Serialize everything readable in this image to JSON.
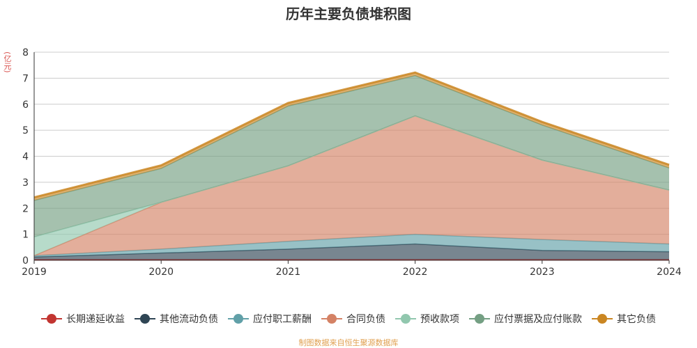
{
  "chart_data": {
    "type": "area",
    "stacked": true,
    "title": "历年主要负债堆积图",
    "unit_label": "(亿元)",
    "x": [
      "2019",
      "2020",
      "2021",
      "2022",
      "2023",
      "2024"
    ],
    "ylim": [
      0,
      8
    ],
    "yticks": [
      "0",
      "1",
      "2",
      "3",
      "4",
      "5",
      "6",
      "7",
      "8"
    ],
    "grid": true,
    "legend_position": "bottom",
    "series": [
      {
        "name": "长期递延收益",
        "color": "#c23531",
        "values": [
          0.03,
          0.03,
          0.03,
          0.03,
          0.03,
          0.03
        ]
      },
      {
        "name": "其他流动负债",
        "color": "#2f4554",
        "values": [
          0.1,
          0.25,
          0.4,
          0.6,
          0.35,
          0.3
        ]
      },
      {
        "name": "应付职工薪酬",
        "color": "#61a0a8",
        "values": [
          0.05,
          0.15,
          0.3,
          0.37,
          0.42,
          0.3
        ]
      },
      {
        "name": "合同负债",
        "color": "#d48265",
        "values": [
          0.0,
          1.8,
          2.9,
          4.55,
          3.05,
          2.07
        ]
      },
      {
        "name": "预收款项",
        "color": "#91c7ae",
        "values": [
          0.72,
          0.0,
          0.0,
          0.0,
          0.0,
          0.0
        ]
      },
      {
        "name": "应付票据及应付账款",
        "color": "#749f83",
        "values": [
          1.4,
          1.3,
          2.3,
          1.55,
          1.35,
          0.85
        ]
      },
      {
        "name": "其它负债",
        "color": "#ca8622",
        "values": [
          0.12,
          0.12,
          0.12,
          0.12,
          0.12,
          0.12
        ]
      }
    ]
  },
  "source": "制图数据来自恒生聚源数据库"
}
